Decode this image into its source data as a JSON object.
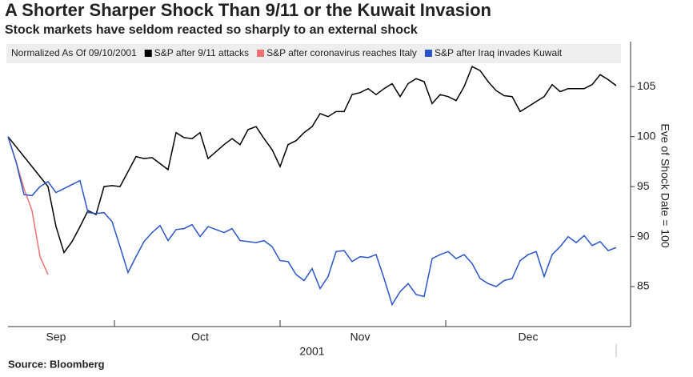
{
  "chart_data": {
    "type": "line",
    "title": "A Shorter Sharper Shock Than 9/11 or the Kuwait Invasion",
    "subtitle": "Stock markets have seldom reacted so sharply to an external shock",
    "legend_title": "Normalized As Of 09/10/2001",
    "ylabel": "Eve of Shock Date = 100",
    "xlabel": "2001",
    "source": "Source: Bloomberg",
    "categories": [
      null,
      null,
      null,
      null,
      null,
      null,
      "Sep",
      null,
      null,
      null,
      null,
      null,
      null,
      null,
      null,
      null,
      null,
      null,
      null,
      null,
      null,
      null,
      null,
      null,
      "Oct",
      null,
      null,
      null,
      null,
      null,
      null,
      null,
      null,
      null,
      null,
      null,
      null,
      null,
      null,
      null,
      null,
      null,
      null,
      null,
      "Nov",
      null,
      null,
      null,
      null,
      null,
      null,
      null,
      null,
      null,
      null,
      null,
      null,
      null,
      null,
      null,
      null,
      null,
      null,
      null,
      null,
      "Dec",
      null,
      null,
      null,
      null,
      null,
      null,
      null,
      null,
      null,
      null,
      null
    ],
    "series": [
      {
        "name": "S&P after 9/11 attacks",
        "color": "#000000",
        "values": [
          100,
          99.0,
          98.0,
          97.0,
          96.0,
          95.0,
          91.0,
          88.4,
          89.5,
          91.0,
          92.6,
          92.2,
          95.0,
          95.1,
          95.0,
          96.5,
          98.0,
          97.8,
          97.9,
          97.3,
          96.7,
          100.4,
          99.9,
          99.8,
          100.4,
          97.8,
          98.5,
          99.2,
          99.8,
          99.2,
          100.7,
          101.0,
          99.8,
          98.7,
          97.0,
          99.2,
          99.6,
          100.4,
          101.0,
          102.3,
          102.0,
          102.5,
          102.5,
          104.2,
          104.4,
          104.8,
          104.2,
          104.8,
          105.3,
          104.0,
          105.3,
          105.8,
          105.5,
          103.3,
          104.2,
          104.0,
          103.6,
          105.0,
          107.0,
          106.6,
          105.5,
          104.6,
          104.1,
          104.0,
          102.5,
          103.0,
          103.5,
          104.0,
          105.2,
          104.5,
          104.8,
          104.8,
          104.8,
          105.2,
          106.2,
          105.7,
          105.1
        ]
      },
      {
        "name": "S&P after coronavirus reaches Italy",
        "color": "#f07070",
        "values": [
          100,
          97.5,
          94.8,
          92.6,
          88.0,
          86.2,
          null,
          null,
          null,
          null,
          null,
          null,
          null,
          null,
          null,
          null,
          null,
          null,
          null,
          null,
          null,
          null,
          null,
          null,
          null,
          null,
          null,
          null,
          null,
          null,
          null,
          null,
          null,
          null,
          null,
          null,
          null,
          null,
          null,
          null,
          null,
          null,
          null,
          null,
          null,
          null,
          null,
          null,
          null,
          null,
          null,
          null,
          null,
          null,
          null,
          null,
          null,
          null,
          null,
          null,
          null,
          null,
          null,
          null,
          null,
          null,
          null,
          null,
          null,
          null,
          null,
          null,
          null,
          null,
          null,
          null,
          null
        ]
      },
      {
        "name": "S&P after Iraq invades Kuwait",
        "color": "#2a55c8",
        "values": [
          100,
          97.5,
          94.2,
          94.1,
          95.0,
          95.5,
          94.4,
          94.8,
          95.2,
          95.6,
          92.4,
          92.3,
          92.4,
          91.5,
          89.0,
          86.4,
          88.0,
          89.5,
          90.4,
          91.1,
          89.6,
          90.7,
          90.8,
          91.2,
          90.0,
          91.0,
          90.7,
          90.4,
          90.8,
          89.6,
          89.5,
          89.4,
          89.6,
          89.0,
          87.6,
          87.5,
          86.2,
          85.6,
          86.8,
          84.8,
          86.0,
          88.5,
          88.6,
          87.5,
          88.0,
          87.9,
          88.2,
          85.8,
          83.2,
          84.5,
          85.3,
          84.2,
          84.0,
          87.8,
          88.2,
          88.5,
          87.8,
          88.2,
          87.3,
          85.8,
          85.3,
          85.0,
          85.6,
          85.8,
          87.6,
          88.2,
          88.5,
          86.0,
          88.2,
          89.0,
          90.0,
          89.4,
          90.1,
          89.1,
          89.5,
          88.6,
          88.9
        ]
      }
    ],
    "ylim": [
      81,
      109.5
    ],
    "yticks": [
      85,
      90,
      95,
      100,
      105
    ],
    "grid": false
  }
}
